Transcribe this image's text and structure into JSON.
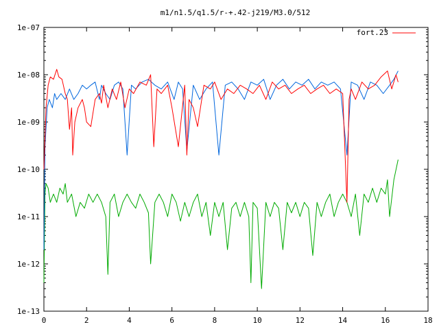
{
  "chart_data": {
    "type": "line",
    "title": "m1/n1.5/q1.5/r-+.42-j219/M3.0/512",
    "xlabel": "",
    "ylabel": "",
    "xlim": [
      0,
      18
    ],
    "ylim": [
      1e-13,
      1e-07
    ],
    "yscale": "log",
    "grid": false,
    "legend_position": "top-right",
    "x_ticks": [
      "0",
      "2",
      "4",
      "6",
      "8",
      "10",
      "12",
      "14",
      "16",
      "18"
    ],
    "y_ticks": [
      "1e-13",
      "1e-12",
      "1e-11",
      "1e-10",
      "1e-09",
      "1e-08",
      "1e-07"
    ],
    "series": [
      {
        "name": "fort.23",
        "color": "#ff0000",
        "x": [
          0,
          0.1,
          0.2,
          0.3,
          0.45,
          0.6,
          0.7,
          0.85,
          1.0,
          1.1,
          1.2,
          1.3,
          1.35,
          1.45,
          1.6,
          1.8,
          1.9,
          2.0,
          2.2,
          2.4,
          2.6,
          2.7,
          2.8,
          3.0,
          3.2,
          3.4,
          3.6,
          3.8,
          4.0,
          4.2,
          4.5,
          4.8,
          5.0,
          5.15,
          5.3,
          5.5,
          5.8,
          6.0,
          6.3,
          6.6,
          6.7,
          6.8,
          7.0,
          7.2,
          7.5,
          7.8,
          8.0,
          8.3,
          8.6,
          8.9,
          9.2,
          9.5,
          9.8,
          10.1,
          10.4,
          10.7,
          11.0,
          11.3,
          11.6,
          11.9,
          12.2,
          12.5,
          12.8,
          13.1,
          13.4,
          13.7,
          14.0,
          14.2,
          14.3,
          14.4,
          14.6,
          14.9,
          15.2,
          15.5,
          15.8,
          16.1,
          16.3,
          16.5,
          16.6
        ],
        "values": [
          1e-10,
          2e-09,
          6e-09,
          9e-09,
          8e-09,
          1.3e-08,
          9e-09,
          8e-09,
          4e-09,
          3e-09,
          7e-10,
          2e-09,
          2e-10,
          1e-09,
          2e-09,
          3e-09,
          2e-09,
          1e-09,
          8e-10,
          3e-09,
          4e-09,
          2.5e-09,
          6e-09,
          2e-09,
          5e-09,
          3e-09,
          7e-09,
          2e-09,
          5e-09,
          4e-09,
          7e-09,
          6e-09,
          1e-08,
          3e-10,
          5e-09,
          4e-09,
          6e-09,
          2e-09,
          3e-10,
          6e-09,
          2e-10,
          3e-09,
          2e-09,
          8e-10,
          6e-09,
          5e-09,
          7e-09,
          3e-09,
          5e-09,
          4e-09,
          6e-09,
          5e-09,
          4e-09,
          6e-09,
          3e-09,
          7e-09,
          5e-09,
          6e-09,
          4e-09,
          5e-09,
          6e-09,
          4e-09,
          5e-09,
          6e-09,
          4e-09,
          5e-09,
          4e-09,
          2e-11,
          3e-09,
          5e-09,
          3e-09,
          7e-09,
          5e-09,
          6e-09,
          9e-09,
          1.2e-08,
          5e-09,
          1e-08,
          7e-09
        ]
      },
      {
        "color": "#0066dd",
        "x": [
          0,
          0.05,
          0.15,
          0.25,
          0.4,
          0.5,
          0.6,
          0.8,
          1.0,
          1.2,
          1.4,
          1.6,
          1.8,
          2.0,
          2.2,
          2.4,
          2.6,
          2.7,
          2.9,
          3.1,
          3.3,
          3.5,
          3.7,
          3.9,
          4.1,
          4.3,
          4.6,
          4.9,
          5.2,
          5.5,
          5.8,
          6.1,
          6.3,
          6.5,
          6.7,
          7.0,
          7.3,
          7.6,
          7.9,
          8.2,
          8.5,
          8.8,
          9.1,
          9.4,
          9.7,
          10.0,
          10.3,
          10.6,
          10.9,
          11.2,
          11.5,
          11.8,
          12.1,
          12.4,
          12.7,
          13.0,
          13.3,
          13.6,
          13.9,
          14.2,
          14.4,
          14.7,
          15.0,
          15.3,
          15.6,
          15.9,
          16.2,
          16.4,
          16.6
        ],
        "values": [
          2e-12,
          3e-10,
          2e-09,
          3e-09,
          2e-09,
          4e-09,
          3e-09,
          4e-09,
          3e-09,
          5e-09,
          3e-09,
          4e-09,
          6e-09,
          5e-09,
          6e-09,
          7e-09,
          3e-09,
          6e-09,
          4e-09,
          3e-09,
          6e-09,
          7e-09,
          5e-09,
          2e-10,
          6e-09,
          5e-09,
          7e-09,
          8e-09,
          6e-09,
          5e-09,
          7e-09,
          3e-09,
          7e-09,
          5e-09,
          2.5e-10,
          6e-09,
          3e-09,
          5e-09,
          7e-09,
          2e-10,
          6e-09,
          7e-09,
          5e-09,
          3e-09,
          7e-09,
          6e-09,
          8e-09,
          3e-09,
          6e-09,
          8e-09,
          5e-09,
          7e-09,
          6e-09,
          8e-09,
          5e-09,
          7e-09,
          6e-09,
          7e-09,
          5e-09,
          2e-10,
          7e-09,
          6e-09,
          3e-09,
          7e-09,
          6e-09,
          4e-09,
          6e-09,
          8e-09,
          1.2e-08
        ]
      },
      {
        "color": "#00aa00",
        "x": [
          0,
          0.05,
          0.1,
          0.2,
          0.3,
          0.45,
          0.6,
          0.75,
          0.9,
          1.0,
          1.1,
          1.3,
          1.5,
          1.7,
          1.9,
          2.1,
          2.3,
          2.5,
          2.7,
          2.9,
          3.0,
          3.1,
          3.3,
          3.5,
          3.7,
          3.9,
          4.1,
          4.3,
          4.5,
          4.7,
          4.9,
          5.0,
          5.2,
          5.4,
          5.6,
          5.8,
          6.0,
          6.2,
          6.4,
          6.6,
          6.8,
          7.0,
          7.2,
          7.4,
          7.6,
          7.8,
          8.0,
          8.2,
          8.4,
          8.6,
          8.8,
          9.0,
          9.2,
          9.4,
          9.6,
          9.7,
          9.8,
          10.0,
          10.2,
          10.4,
          10.6,
          10.8,
          11.0,
          11.2,
          11.4,
          11.6,
          11.8,
          12.0,
          12.2,
          12.4,
          12.6,
          12.8,
          13.0,
          13.2,
          13.4,
          13.6,
          13.8,
          14.0,
          14.2,
          14.4,
          14.6,
          14.8,
          15.0,
          15.2,
          15.4,
          15.6,
          15.8,
          16.0,
          16.1,
          16.2,
          16.4,
          16.6
        ],
        "values": [
          4e-13,
          3e-11,
          5e-11,
          4e-11,
          2e-11,
          3e-11,
          2e-11,
          4e-11,
          3e-11,
          5e-11,
          2e-11,
          3e-11,
          1e-11,
          2e-11,
          1.5e-11,
          3e-11,
          2e-11,
          3e-11,
          2e-11,
          1e-11,
          6e-13,
          2e-11,
          3e-11,
          1e-11,
          2e-11,
          3e-11,
          2e-11,
          1.5e-11,
          3e-11,
          2e-11,
          1.2e-11,
          1e-12,
          2e-11,
          3e-11,
          2e-11,
          1e-11,
          3e-11,
          2e-11,
          8e-12,
          2e-11,
          1e-11,
          2e-11,
          3e-11,
          1e-11,
          2e-11,
          4e-12,
          2e-11,
          1e-11,
          2e-11,
          2e-12,
          1.5e-11,
          2e-11,
          1e-11,
          2e-11,
          1e-11,
          4e-13,
          2e-11,
          1.5e-11,
          3e-13,
          2e-11,
          1e-11,
          2e-11,
          1.5e-11,
          2e-12,
          2e-11,
          1.2e-11,
          2e-11,
          1e-11,
          2e-11,
          1.5e-11,
          1.5e-12,
          2e-11,
          1e-11,
          2e-11,
          3e-11,
          1e-11,
          2e-11,
          3e-11,
          2e-11,
          1e-11,
          3e-11,
          4e-12,
          3e-11,
          2e-11,
          4e-11,
          2e-11,
          4e-11,
          3e-11,
          6e-11,
          1e-11,
          6e-11,
          1.6e-10
        ]
      }
    ]
  }
}
